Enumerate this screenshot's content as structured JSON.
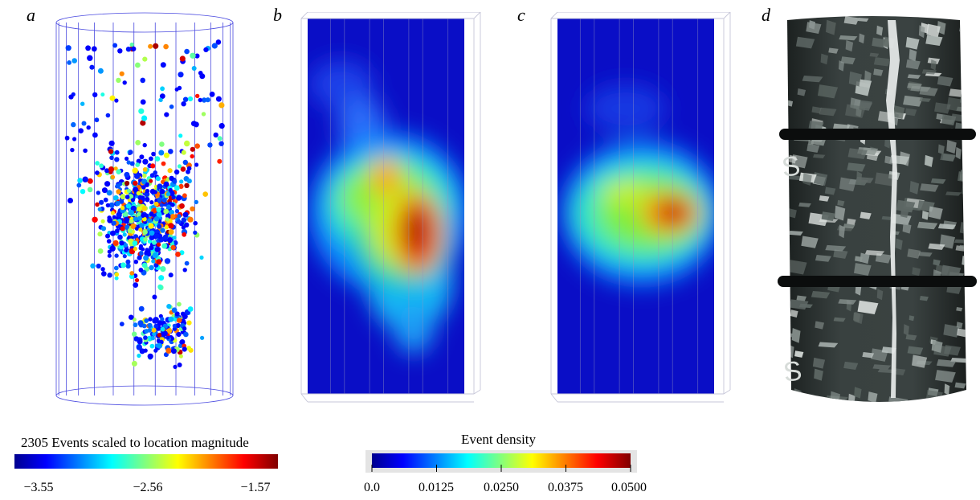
{
  "panels": {
    "a": {
      "label": "a"
    },
    "b": {
      "label": "b"
    },
    "c": {
      "label": "c"
    },
    "d": {
      "label": "d"
    }
  },
  "colorbar_magnitude": {
    "title": "2305 Events scaled to location magnitude",
    "ticks": [
      "−3.55",
      "−2.56",
      "−1.57"
    ]
  },
  "colorbar_density": {
    "title": "Event density",
    "ticks": [
      "0.0",
      "0.0125",
      "0.0250",
      "0.0375",
      "0.0500"
    ]
  },
  "chart_data": [
    {
      "type": "scatter",
      "panel": "a",
      "description_count": 2305,
      "color_scale": {
        "min": -3.55,
        "mid": -2.56,
        "max": -1.57,
        "colormap": "jet"
      }
    },
    {
      "type": "heatmap",
      "panel": "b",
      "color_scale": {
        "min": 0.0,
        "max": 0.05,
        "colormap": "jet"
      }
    },
    {
      "type": "heatmap",
      "panel": "c",
      "color_scale": {
        "min": 0.0,
        "max": 0.05,
        "colormap": "jet"
      }
    }
  ],
  "colors": {
    "cylinder_lines": "#3a3ad8",
    "density_bg": "#0a10c8",
    "rock_dark": "#2a2f2e",
    "rock_light": "#c9cfcc"
  }
}
